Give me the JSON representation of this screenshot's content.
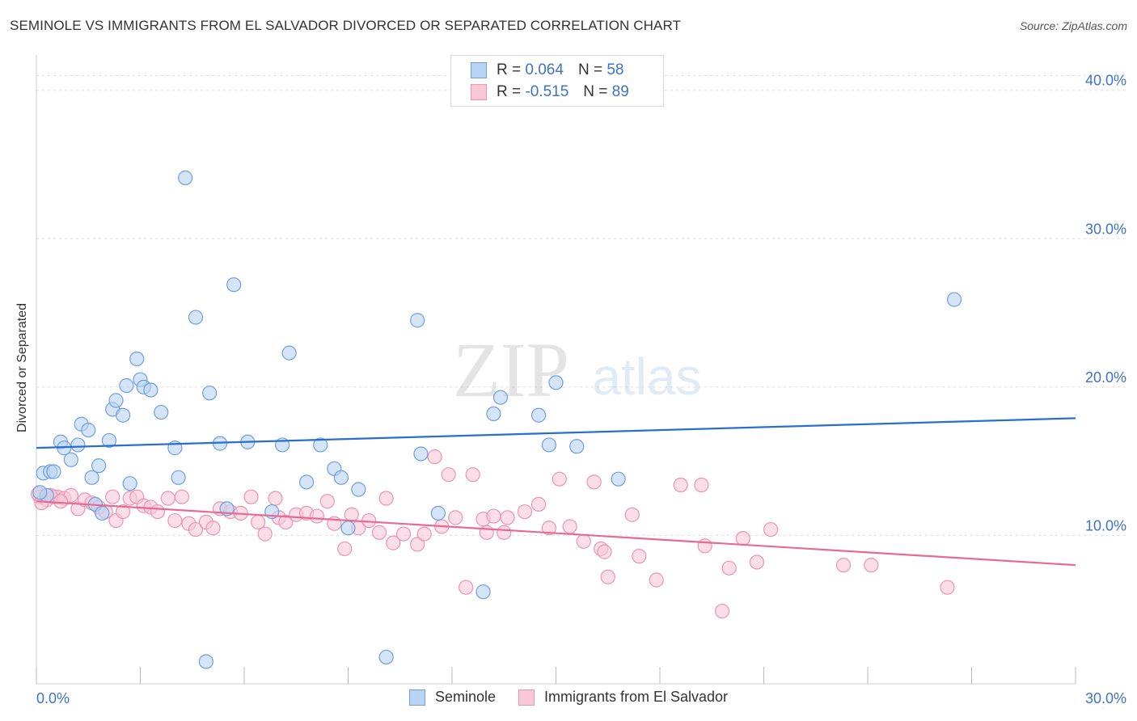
{
  "title": "SEMINOLE VS IMMIGRANTS FROM EL SALVADOR DIVORCED OR SEPARATED CORRELATION CHART",
  "source": "Source: ZipAtlas.com",
  "watermark": {
    "zip": "ZIP",
    "atlas": "atlas"
  },
  "colors": {
    "seminole_fill": "#b9d3f2",
    "seminole_stroke": "#6f9fe0",
    "seminole_line": "#2a6fcb",
    "salvador_fill": "#f8c8d8",
    "salvador_stroke": "#ec94b2",
    "salvador_line": "#e56b94",
    "axis_label": "#3d74c4",
    "grid": "#dddddd"
  },
  "legend_top": {
    "rows": [
      {
        "r_label": "R =",
        "r_value": "0.064",
        "n_label": "N =",
        "n_value": "58"
      },
      {
        "r_label": "R =",
        "r_value": "-0.515",
        "n_label": "N =",
        "n_value": "89"
      }
    ]
  },
  "legend_bottom": [
    "Seminole",
    "Immigrants from El Salvador"
  ],
  "chart_data": {
    "type": "scatter",
    "title": "SEMINOLE VS IMMIGRANTS FROM EL SALVADOR DIVORCED OR SEPARATED CORRELATION CHART",
    "xlabel": "",
    "ylabel": "Divorced or Separated",
    "xlim": [
      0,
      30
    ],
    "ylim": [
      0,
      42
    ],
    "x_tick_labels": [
      {
        "v": 0,
        "label": "0.0%"
      },
      {
        "v": 30,
        "label": "30.0%"
      }
    ],
    "y_tick_labels": [
      {
        "v": 10,
        "label": "10.0%"
      },
      {
        "v": 20,
        "label": "20.0%"
      },
      {
        "v": 30,
        "label": "30.0%"
      },
      {
        "v": 40,
        "label": "40.0%"
      }
    ],
    "grid": true,
    "legend_position": "top-center",
    "series": [
      {
        "name": "Seminole",
        "trend": [
          [
            0,
            15.9
          ],
          [
            30,
            17.9
          ]
        ],
        "points": [
          [
            0.2,
            14.2
          ],
          [
            0.4,
            14.3
          ],
          [
            0.5,
            14.3
          ],
          [
            0.7,
            16.3
          ],
          [
            0.8,
            15.9
          ],
          [
            1.0,
            15.1
          ],
          [
            1.2,
            16.1
          ],
          [
            1.3,
            17.5
          ],
          [
            1.5,
            17.1
          ],
          [
            1.6,
            13.9
          ],
          [
            1.7,
            12.1
          ],
          [
            1.8,
            14.7
          ],
          [
            1.9,
            11.5
          ],
          [
            2.1,
            16.4
          ],
          [
            2.2,
            18.5
          ],
          [
            2.3,
            19.1
          ],
          [
            2.5,
            18.1
          ],
          [
            2.6,
            20.1
          ],
          [
            2.7,
            13.5
          ],
          [
            2.9,
            21.9
          ],
          [
            3.0,
            20.5
          ],
          [
            3.1,
            20.0
          ],
          [
            3.3,
            19.8
          ],
          [
            3.6,
            18.3
          ],
          [
            4.0,
            15.9
          ],
          [
            4.1,
            13.9
          ],
          [
            4.3,
            34.1
          ],
          [
            4.6,
            24.7
          ],
          [
            4.9,
            1.5
          ],
          [
            5.0,
            19.6
          ],
          [
            5.3,
            16.2
          ],
          [
            5.5,
            11.8
          ],
          [
            5.7,
            26.9
          ],
          [
            6.1,
            16.3
          ],
          [
            6.8,
            11.6
          ],
          [
            7.1,
            16.1
          ],
          [
            7.3,
            22.3
          ],
          [
            7.8,
            13.6
          ],
          [
            8.2,
            16.1
          ],
          [
            8.6,
            14.5
          ],
          [
            8.8,
            13.9
          ],
          [
            9.0,
            10.5
          ],
          [
            9.3,
            13.1
          ],
          [
            10.1,
            1.8
          ],
          [
            11.0,
            24.5
          ],
          [
            11.1,
            15.5
          ],
          [
            11.6,
            11.5
          ],
          [
            12.9,
            6.2
          ],
          [
            13.2,
            18.2
          ],
          [
            13.4,
            19.3
          ],
          [
            14.5,
            18.1
          ],
          [
            14.8,
            16.1
          ],
          [
            15.0,
            20.3
          ],
          [
            15.6,
            16.0
          ],
          [
            16.8,
            13.8
          ],
          [
            26.5,
            25.9
          ],
          [
            0.3,
            12.7
          ],
          [
            0.1,
            12.9
          ]
        ]
      },
      {
        "name": "Immigrants from El Salvador",
        "trend": [
          [
            0,
            12.3
          ],
          [
            30,
            8.0
          ]
        ],
        "points": [
          [
            0.1,
            12.6
          ],
          [
            0.3,
            12.4
          ],
          [
            0.5,
            12.6
          ],
          [
            0.6,
            12.6
          ],
          [
            0.8,
            12.5
          ],
          [
            1.0,
            12.7
          ],
          [
            1.2,
            11.8
          ],
          [
            1.4,
            12.4
          ],
          [
            1.6,
            12.2
          ],
          [
            1.8,
            11.9
          ],
          [
            2.0,
            11.6
          ],
          [
            2.2,
            12.6
          ],
          [
            2.3,
            11.0
          ],
          [
            2.5,
            11.6
          ],
          [
            2.7,
            12.5
          ],
          [
            2.9,
            12.6
          ],
          [
            3.1,
            12.0
          ],
          [
            3.3,
            11.9
          ],
          [
            3.5,
            11.6
          ],
          [
            3.8,
            12.5
          ],
          [
            4.0,
            11.0
          ],
          [
            4.2,
            12.6
          ],
          [
            4.4,
            10.8
          ],
          [
            4.6,
            10.4
          ],
          [
            4.9,
            10.9
          ],
          [
            5.1,
            10.5
          ],
          [
            5.3,
            11.8
          ],
          [
            5.6,
            11.6
          ],
          [
            5.9,
            11.5
          ],
          [
            6.2,
            12.6
          ],
          [
            6.4,
            10.9
          ],
          [
            6.6,
            10.1
          ],
          [
            6.9,
            12.5
          ],
          [
            7.0,
            11.2
          ],
          [
            7.2,
            10.9
          ],
          [
            7.5,
            11.4
          ],
          [
            7.8,
            11.5
          ],
          [
            8.1,
            11.3
          ],
          [
            8.4,
            12.3
          ],
          [
            8.6,
            10.8
          ],
          [
            8.9,
            9.1
          ],
          [
            9.1,
            11.4
          ],
          [
            9.3,
            10.5
          ],
          [
            9.6,
            11.0
          ],
          [
            9.9,
            10.2
          ],
          [
            10.1,
            12.5
          ],
          [
            10.3,
            9.5
          ],
          [
            10.6,
            10.1
          ],
          [
            11.0,
            9.4
          ],
          [
            11.2,
            10.1
          ],
          [
            11.5,
            15.3
          ],
          [
            11.7,
            10.6
          ],
          [
            11.9,
            14.1
          ],
          [
            12.1,
            11.2
          ],
          [
            12.4,
            6.5
          ],
          [
            12.6,
            14.1
          ],
          [
            12.9,
            11.1
          ],
          [
            13.0,
            10.2
          ],
          [
            13.2,
            11.3
          ],
          [
            13.5,
            10.2
          ],
          [
            13.6,
            11.2
          ],
          [
            14.1,
            11.6
          ],
          [
            14.5,
            12.1
          ],
          [
            14.8,
            10.5
          ],
          [
            15.1,
            13.8
          ],
          [
            15.4,
            10.6
          ],
          [
            15.8,
            9.6
          ],
          [
            16.1,
            13.6
          ],
          [
            16.3,
            9.1
          ],
          [
            16.4,
            8.9
          ],
          [
            16.5,
            7.2
          ],
          [
            17.2,
            11.4
          ],
          [
            17.4,
            8.6
          ],
          [
            17.9,
            7.0
          ],
          [
            18.6,
            13.4
          ],
          [
            19.2,
            13.4
          ],
          [
            19.3,
            9.3
          ],
          [
            19.8,
            4.9
          ],
          [
            20.0,
            7.8
          ],
          [
            20.4,
            9.8
          ],
          [
            20.8,
            8.2
          ],
          [
            21.2,
            10.4
          ],
          [
            23.3,
            8.0
          ],
          [
            24.1,
            8.0
          ],
          [
            26.3,
            6.5
          ],
          [
            0.05,
            12.8
          ],
          [
            0.15,
            12.2
          ],
          [
            0.4,
            12.7
          ],
          [
            0.7,
            12.3
          ]
        ]
      }
    ]
  }
}
